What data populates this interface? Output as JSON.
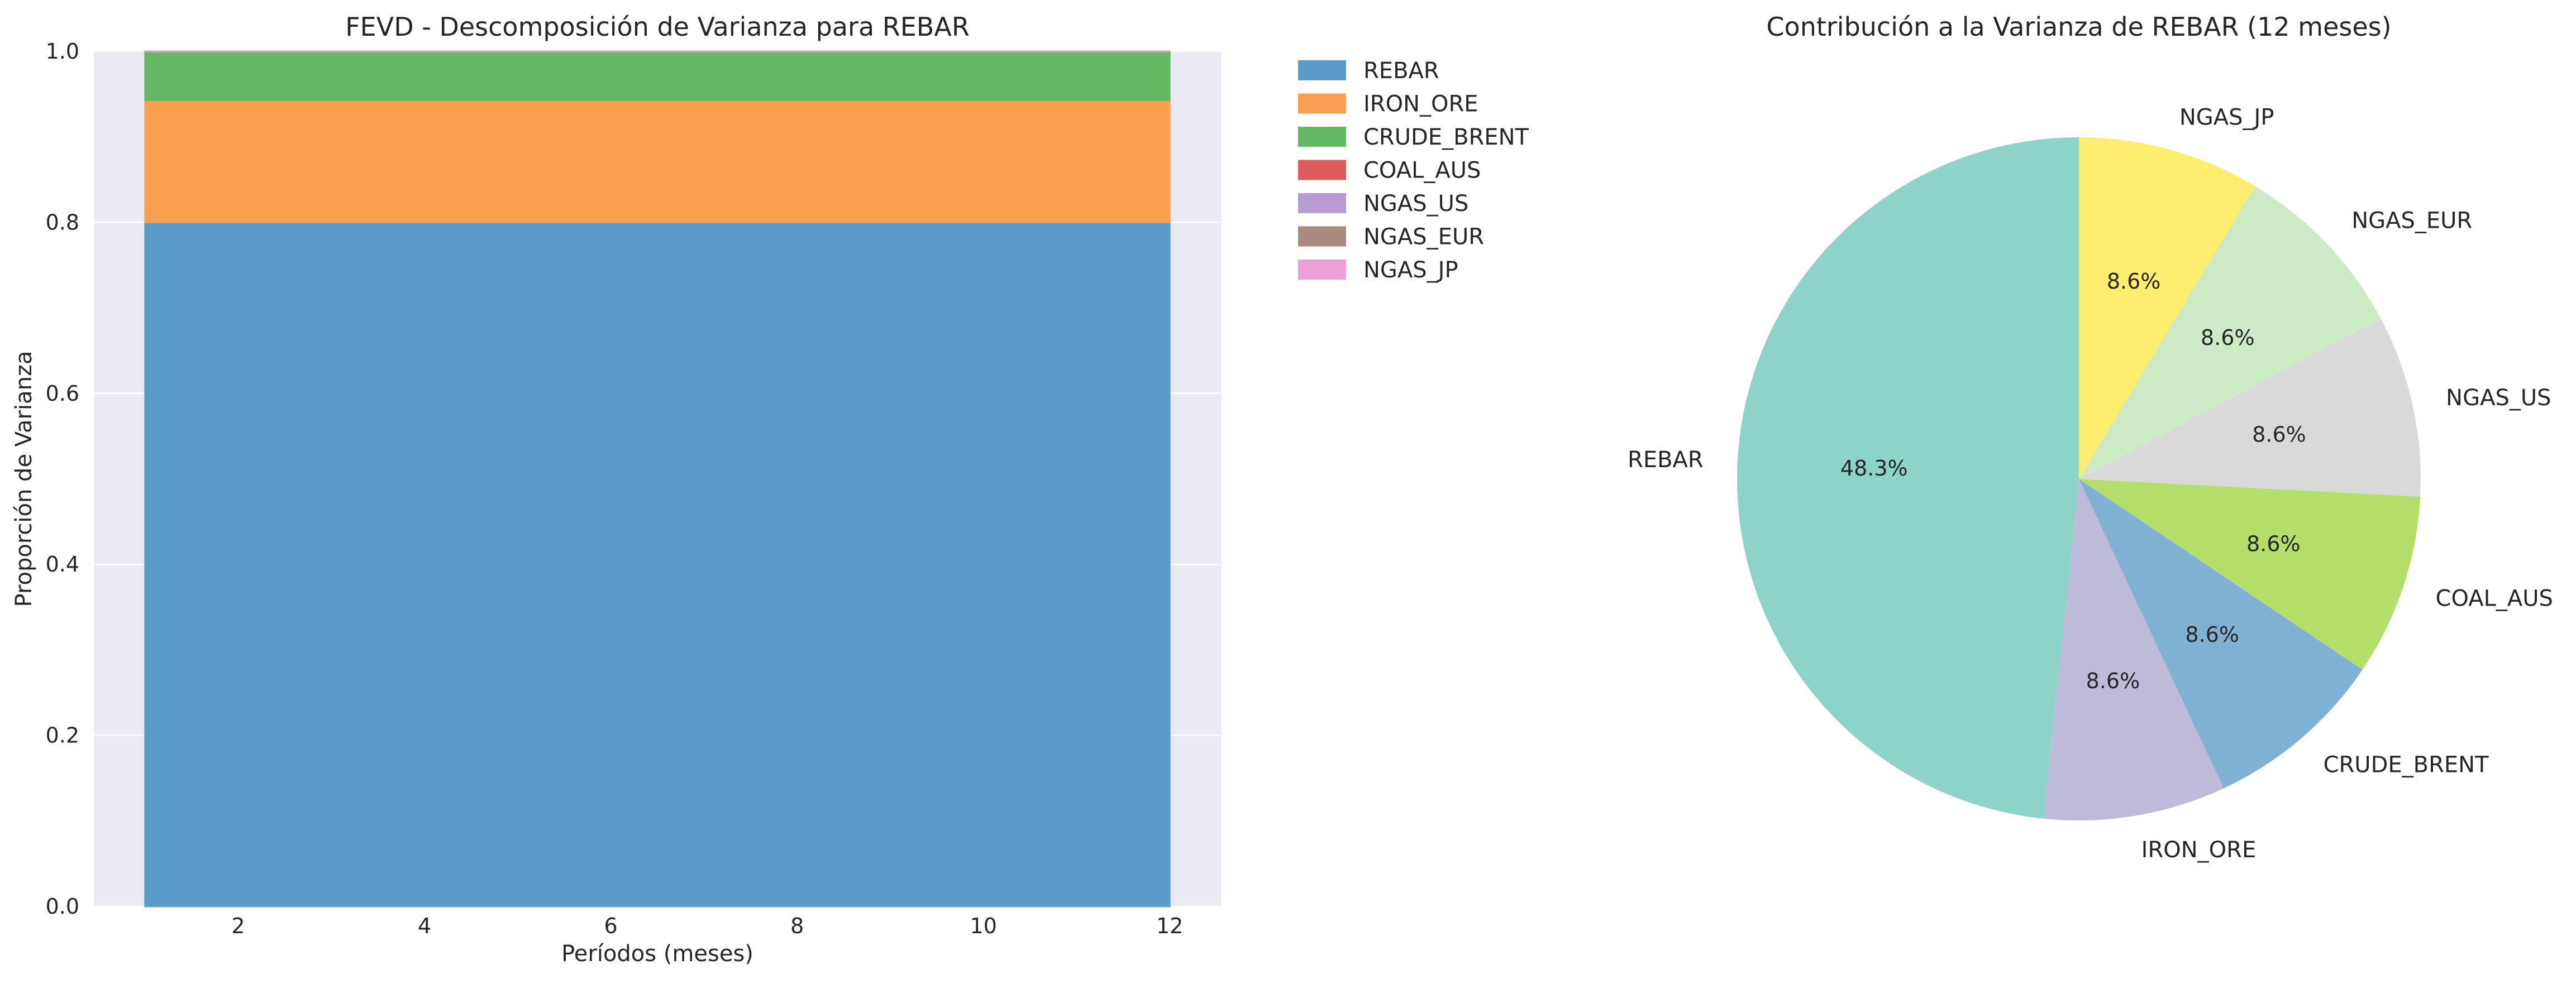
{
  "chart_data": [
    {
      "type": "area",
      "subtype": "stacked",
      "title": "FEVD - Descomposición de Varianza para REBAR",
      "xlabel": "Períodos (meses)",
      "ylabel": "Proporción de Varianza",
      "xlim": [
        0.45,
        12.55
      ],
      "ylim": [
        0,
        1
      ],
      "xticks": [
        2,
        4,
        6,
        8,
        10,
        12
      ],
      "yticks": [
        0.0,
        0.2,
        0.4,
        0.6,
        0.8,
        1.0
      ],
      "grid": true,
      "legend_position": "outside upper right",
      "x": [
        1,
        12
      ],
      "series": [
        {
          "name": "REBAR",
          "color": "#5b9bc7",
          "values": [
            0.8,
            0.8
          ]
        },
        {
          "name": "IRON_ORE",
          "color": "#f8a050",
          "values": [
            0.143,
            0.143
          ]
        },
        {
          "name": "CRUDE_BRENT",
          "color": "#64b864",
          "values": [
            0.057,
            0.057
          ]
        },
        {
          "name": "COAL_AUS",
          "color": "#df5a5b",
          "values": [
            0.0,
            0.0
          ]
        },
        {
          "name": "NGAS_US",
          "color": "#b89bd0",
          "values": [
            0.0,
            0.0
          ]
        },
        {
          "name": "NGAS_EUR",
          "color": "#aa8a80",
          "values": [
            0.0,
            0.0
          ]
        },
        {
          "name": "NGAS_JP",
          "color": "#ee9fd6",
          "values": [
            0.0,
            0.0
          ]
        }
      ]
    },
    {
      "type": "pie",
      "title": "Contribución a la Varianza de REBAR (12 meses)",
      "start_angle_deg": 90,
      "direction": "counterclockwise",
      "slices": [
        {
          "label": "REBAR",
          "value": 48.3,
          "pct_label": "48.3%",
          "color": "#8dd3c7"
        },
        {
          "label": "IRON_ORE",
          "value": 8.6,
          "pct_label": "8.6%",
          "color": "#bebada"
        },
        {
          "label": "CRUDE_BRENT",
          "value": 8.6,
          "pct_label": "8.6%",
          "color": "#80b1d3"
        },
        {
          "label": "COAL_AUS",
          "value": 8.6,
          "pct_label": "8.6%",
          "color": "#b3de69"
        },
        {
          "label": "NGAS_US",
          "value": 8.6,
          "pct_label": "8.6%",
          "color": "#d9d9d9"
        },
        {
          "label": "NGAS_EUR",
          "value": 8.6,
          "pct_label": "8.6%",
          "color": "#ccebc5"
        },
        {
          "label": "NGAS_JP",
          "value": 8.6,
          "pct_label": "8.6%",
          "color": "#ffed6f"
        }
      ]
    }
  ]
}
